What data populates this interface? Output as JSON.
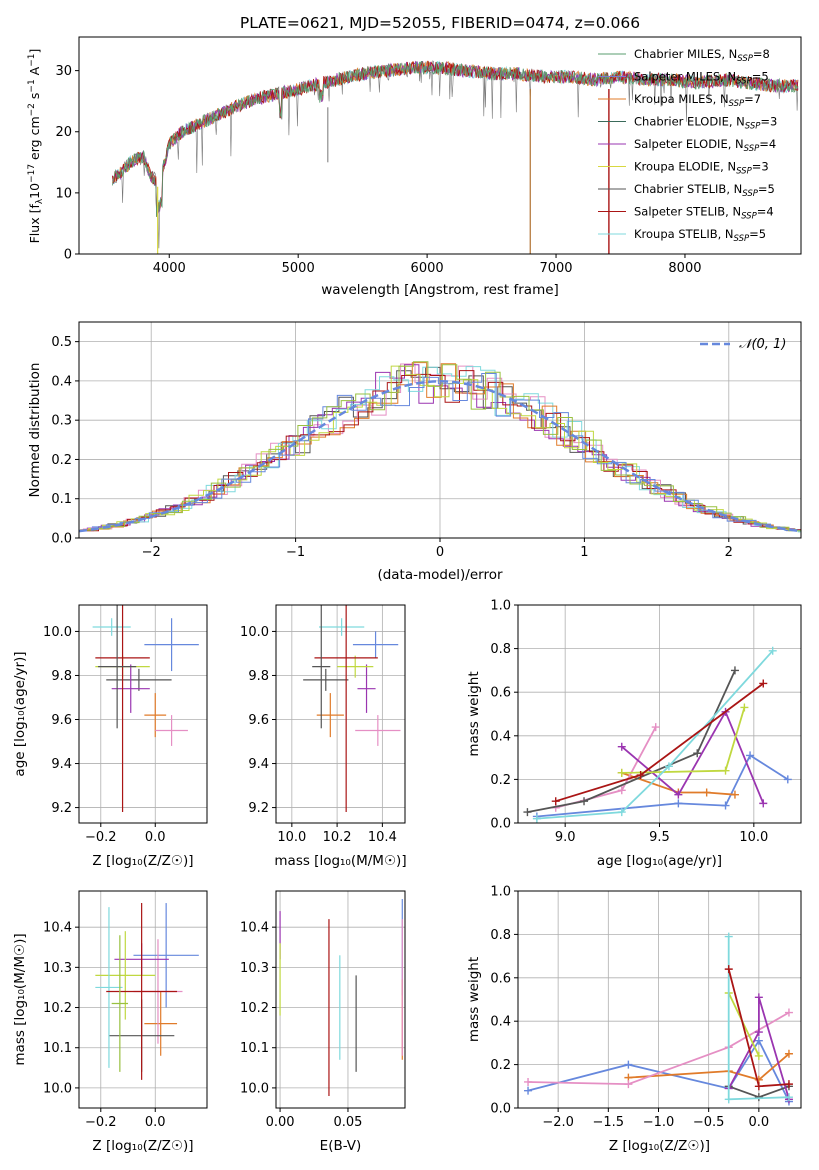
{
  "colors": [
    "#6688dd",
    "#e07b2a",
    "#e58fc4",
    "#555555",
    "#9a35b0",
    "#c0d840",
    "#7fd9dd",
    "#aa1515",
    "#99c040"
  ],
  "spectrum": {
    "title": "PLATE=0621, MJD=52055, FIBERID=0474, z=0.066",
    "xlabel": "wavelength [Angstrom, rest frame]",
    "ylabel_parts": [
      "Flux [f",
      "λ",
      "10",
      "−17",
      " erg cm",
      "−2",
      " s",
      "−1",
      " A",
      "−1",
      "]"
    ],
    "x_ticks": [
      "4000",
      "5000",
      "6000",
      "7000",
      "8000"
    ],
    "y_ticks": [
      "0",
      "10",
      "20",
      "30"
    ],
    "legend": [
      {
        "label": "Chabrier MILES, N",
        "sub": "SSP",
        "tail": "=8",
        "color": "#5a9e6f"
      },
      {
        "label": "Salpeter MILES, N",
        "sub": "SSP",
        "tail": "=5",
        "color": "#7a7ad0"
      },
      {
        "label": "Kroupa MILES, N",
        "sub": "SSP",
        "tail": "=7",
        "color": "#e07b2a"
      },
      {
        "label": "Chabrier ELODIE, N",
        "sub": "SSP",
        "tail": "=3",
        "color": "#3a6a5a"
      },
      {
        "label": "Salpeter ELODIE, N",
        "sub": "SSP",
        "tail": "=4",
        "color": "#9a35b0"
      },
      {
        "label": "Kroupa ELODIE, N",
        "sub": "SSP",
        "tail": "=3",
        "color": "#d8d840"
      },
      {
        "label": "Chabrier STELIB, N",
        "sub": "SSP",
        "tail": "=5",
        "color": "#555555"
      },
      {
        "label": "Salpeter STELIB, N",
        "sub": "SSP",
        "tail": "=4",
        "color": "#aa1515"
      },
      {
        "label": "Kroupa STELIB, N",
        "sub": "SSP",
        "tail": "=5",
        "color": "#7fd9dd"
      }
    ]
  },
  "histogram": {
    "xlabel": "(data-model)/error",
    "ylabel": "Normed distribution",
    "x_ticks": [
      "−2",
      "−1",
      "0",
      "1",
      "2"
    ],
    "y_ticks": [
      "0.0",
      "0.1",
      "0.2",
      "0.3",
      "0.4",
      "0.5"
    ],
    "legend": "𝒩(0, 1)"
  },
  "panels": {
    "age_vs_z": {
      "xlabel": "Z [log₁₀(Z/Z☉)]",
      "ylabel": "age  [log₁₀(age/yr)]",
      "x_ticks": [
        "−0.2",
        "0.0"
      ],
      "y_ticks": [
        "9.2",
        "9.4",
        "9.6",
        "9.8",
        "10.0"
      ]
    },
    "age_vs_mass": {
      "xlabel": "mass [log₁₀(M/M☉)]",
      "x_ticks": [
        "10.0",
        "10.2",
        "10.4"
      ],
      "y_ticks": [
        "9.2",
        "9.4",
        "9.6",
        "9.8",
        "10.0"
      ]
    },
    "weight_vs_age": {
      "xlabel": "age  [log₁₀(age/yr)]",
      "ylabel": "mass weight",
      "x_ticks": [
        "9.0",
        "9.5",
        "10.0"
      ],
      "y_ticks": [
        "0.0",
        "0.2",
        "0.4",
        "0.6",
        "0.8",
        "1.0"
      ]
    },
    "mass_vs_z": {
      "xlabel": "Z [log₁₀(Z/Z☉)]",
      "ylabel": "mass [log₁₀(M/M☉)]",
      "x_ticks": [
        "−0.2",
        "0.0"
      ],
      "y_ticks": [
        "10.0",
        "10.1",
        "10.2",
        "10.3",
        "10.4"
      ]
    },
    "mass_vs_ebv": {
      "xlabel": "E(B-V)",
      "x_ticks": [
        "0.00",
        "0.05"
      ],
      "y_ticks": [
        "10.0",
        "10.1",
        "10.2",
        "10.3",
        "10.4"
      ]
    },
    "weight_vs_z": {
      "xlabel": "Z [log₁₀(Z/Z☉)]",
      "ylabel": "mass weight",
      "x_ticks": [
        "−2.0",
        "−1.5",
        "−1.0",
        "−0.5",
        "0.0"
      ],
      "y_ticks": [
        "0.0",
        "0.2",
        "0.4",
        "0.6",
        "0.8",
        "1.0"
      ]
    }
  },
  "chart_data": [
    {
      "type": "line",
      "title": "PLATE=0621, MJD=52055, FIBERID=0474, z=0.066",
      "xlabel": "wavelength [Angstrom, rest frame]",
      "ylabel": "Flux [fλ 10^-17 erg cm^-2 s^-1 A^-1]",
      "xlim": [
        3300,
        8900
      ],
      "ylim": [
        0,
        35.5
      ],
      "x": [
        3560,
        3600,
        3650,
        3700,
        3750,
        3800,
        3850,
        3900,
        3950,
        4000,
        4100,
        4200,
        4300,
        4400,
        4500,
        4700,
        4900,
        5100,
        5300,
        5500,
        5700,
        5900,
        6100,
        6300,
        6500,
        6700,
        6900,
        7100,
        7300,
        7500,
        7700,
        7900,
        8100,
        8300,
        8500,
        8700,
        8880
      ],
      "y": [
        12,
        13,
        14,
        15,
        15.5,
        16,
        13,
        12,
        14,
        18,
        20,
        21,
        22,
        23,
        24,
        25.5,
        26.5,
        27.5,
        28.5,
        29.5,
        30,
        30.5,
        30.5,
        30,
        29.5,
        29.5,
        29,
        29,
        28.5,
        29,
        28.5,
        28.5,
        28,
        28.5,
        28,
        27.5,
        27.5
      ]
    },
    {
      "type": "line",
      "series": [
        {
          "name": "𝒩(0, 1)"
        }
      ],
      "xlabel": "(data-model)/error",
      "ylabel": "Normed distribution",
      "xlim": [
        -2.5,
        2.5
      ],
      "ylim": [
        0,
        0.55
      ]
    },
    {
      "type": "scatter",
      "xlabel": "Z [log10(Z/Zsun)]",
      "ylabel": "age [log10(age/yr)]",
      "xlim": [
        -0.28,
        0.19
      ],
      "ylim": [
        9.13,
        10.12
      ],
      "points": [
        {
          "x": 0.06,
          "y": 9.94,
          "xerr": 0.1,
          "yerr": 0.12,
          "c": 0
        },
        {
          "x": 0.0,
          "y": 9.62,
          "xerr": 0.04,
          "yerr": 0.1,
          "c": 1
        },
        {
          "x": 0.06,
          "y": 9.55,
          "xerr": 0.06,
          "yerr": 0.07,
          "c": 2
        },
        {
          "x": -0.06,
          "y": 9.78,
          "xerr": 0.12,
          "yerr": 0.05,
          "c": 3
        },
        {
          "x": -0.09,
          "y": 9.74,
          "xerr": 0.07,
          "yerr": 0.11,
          "c": 4
        },
        {
          "x": -0.12,
          "y": 9.84,
          "xerr": 0.1,
          "yerr": 0.05,
          "c": 5
        },
        {
          "x": -0.16,
          "y": 10.02,
          "xerr": 0.07,
          "yerr": 0.04,
          "c": 6
        },
        {
          "x": -0.12,
          "y": 9.88,
          "xerr": 0.1,
          "yerr": 0.7,
          "c": 7
        },
        {
          "x": -0.14,
          "y": 9.84,
          "xerr": 0.07,
          "yerr": 0.28,
          "c": 3
        }
      ]
    },
    {
      "type": "scatter",
      "xlabel": "mass [log10(M/Msun)]",
      "xlim": [
        9.93,
        10.5
      ],
      "ylim": [
        9.13,
        10.12
      ],
      "points": [
        {
          "x": 10.37,
          "y": 9.94,
          "xerr": 0.1,
          "yerr": 0.06,
          "c": 0
        },
        {
          "x": 10.17,
          "y": 9.62,
          "xerr": 0.06,
          "yerr": 0.1,
          "c": 1
        },
        {
          "x": 10.38,
          "y": 9.55,
          "xerr": 0.1,
          "yerr": 0.07,
          "c": 2
        },
        {
          "x": 10.15,
          "y": 9.78,
          "xerr": 0.1,
          "yerr": 0.05,
          "c": 3
        },
        {
          "x": 10.33,
          "y": 9.74,
          "xerr": 0.04,
          "yerr": 0.11,
          "c": 4
        },
        {
          "x": 10.28,
          "y": 9.84,
          "xerr": 0.08,
          "yerr": 0.05,
          "c": 5
        },
        {
          "x": 10.22,
          "y": 10.02,
          "xerr": 0.1,
          "yerr": 0.04,
          "c": 6
        },
        {
          "x": 10.24,
          "y": 9.88,
          "xerr": 0.14,
          "yerr": 0.7,
          "c": 7
        },
        {
          "x": 10.13,
          "y": 9.84,
          "xerr": 0.04,
          "yerr": 0.28,
          "c": 3
        }
      ]
    },
    {
      "type": "line",
      "xlabel": "age [log10(age/yr)]",
      "ylabel": "mass weight",
      "xlim": [
        8.75,
        10.25
      ],
      "ylim": [
        0,
        1
      ],
      "series": [
        {
          "c": 0,
          "x": [
            8.85,
            9.6,
            9.85,
            9.98,
            10.18
          ],
          "y": [
            0.03,
            0.09,
            0.08,
            0.31,
            0.2
          ]
        },
        {
          "c": 1,
          "x": [
            9.3,
            9.6,
            9.75,
            9.9
          ],
          "y": [
            0.23,
            0.14,
            0.14,
            0.13
          ]
        },
        {
          "c": 2,
          "x": [
            8.95,
            9.3,
            9.48
          ],
          "y": [
            0.07,
            0.15,
            0.44
          ]
        },
        {
          "c": 3,
          "x": [
            8.8,
            9.1,
            9.7,
            9.9
          ],
          "y": [
            0.05,
            0.1,
            0.32,
            0.7
          ]
        },
        {
          "c": 4,
          "x": [
            9.3,
            9.6,
            9.85,
            10.05
          ],
          "y": [
            0.35,
            0.13,
            0.51,
            0.09
          ]
        },
        {
          "c": 5,
          "x": [
            9.3,
            9.85,
            9.95
          ],
          "y": [
            0.23,
            0.24,
            0.53
          ]
        },
        {
          "c": 6,
          "x": [
            8.85,
            9.3,
            9.55,
            10.1
          ],
          "y": [
            0.02,
            0.05,
            0.26,
            0.79
          ]
        },
        {
          "c": 7,
          "x": [
            8.95,
            9.4,
            10.05
          ],
          "y": [
            0.1,
            0.22,
            0.64
          ]
        }
      ]
    },
    {
      "type": "scatter",
      "xlabel": "Z [log10(Z/Zsun)]",
      "ylabel": "mass [log10(M/Msun)]",
      "xlim": [
        -0.28,
        0.19
      ],
      "ylim": [
        9.95,
        10.49
      ],
      "points": [
        {
          "x": 0.04,
          "y": 10.33,
          "xerr": 0.12,
          "yerr": 0.13,
          "c": 0
        },
        {
          "x": 0.02,
          "y": 10.16,
          "xerr": 0.06,
          "yerr": 0.08,
          "c": 1
        },
        {
          "x": 0.01,
          "y": 10.24,
          "xerr": 0.09,
          "yerr": 0.13,
          "c": 2
        },
        {
          "x": -0.05,
          "y": 10.13,
          "xerr": 0.12,
          "yerr": 0.09,
          "c": 3
        },
        {
          "x": -0.05,
          "y": 10.32,
          "xerr": 0.1,
          "yerr": 0.04,
          "c": 4
        },
        {
          "x": -0.11,
          "y": 10.28,
          "xerr": 0.11,
          "yerr": 0.11,
          "c": 5
        },
        {
          "x": -0.17,
          "y": 10.25,
          "xerr": 0.05,
          "yerr": 0.2,
          "c": 6
        },
        {
          "x": -0.05,
          "y": 10.24,
          "xerr": 0.13,
          "yerr": 0.22,
          "c": 7
        },
        {
          "x": -0.13,
          "y": 10.21,
          "xerr": 0.03,
          "yerr": 0.17,
          "c": 8
        }
      ]
    },
    {
      "type": "scatter",
      "xlabel": "E(B-V)",
      "xlim": [
        -0.003,
        0.092
      ],
      "ylim": [
        9.95,
        10.49
      ],
      "points": [
        {
          "x": 0.0,
          "y": 10.38,
          "yerr": 0.06,
          "c": 4
        },
        {
          "x": 0.0,
          "y": 10.27,
          "yerr": 0.09,
          "c": 5
        },
        {
          "x": 0.036,
          "y": 10.2,
          "yerr": 0.22,
          "c": 7
        },
        {
          "x": 0.044,
          "y": 10.2,
          "yerr": 0.13,
          "c": 6
        },
        {
          "x": 0.056,
          "y": 10.16,
          "yerr": 0.12,
          "c": 3
        },
        {
          "x": 0.09,
          "y": 10.35,
          "yerr": 0.12,
          "c": 0
        },
        {
          "x": 0.09,
          "y": 10.17,
          "yerr": 0.1,
          "c": 1
        },
        {
          "x": 0.09,
          "y": 10.25,
          "yerr": 0.17,
          "c": 2
        }
      ]
    },
    {
      "type": "line",
      "xlabel": "Z [log10(Z/Zsun)]",
      "ylabel": "mass weight",
      "xlim": [
        -2.4,
        0.42
      ],
      "ylim": [
        0,
        1
      ],
      "series": [
        {
          "c": 0,
          "x": [
            -2.3,
            -1.3,
            -0.3,
            0.0,
            0.3
          ],
          "y": [
            0.08,
            0.2,
            0.09,
            0.31,
            0.03
          ]
        },
        {
          "c": 1,
          "x": [
            -1.3,
            -0.3,
            0.0,
            0.3
          ],
          "y": [
            0.14,
            0.17,
            0.13,
            0.25
          ]
        },
        {
          "c": 2,
          "x": [
            -2.3,
            -1.3,
            -0.3,
            0.3
          ],
          "y": [
            0.12,
            0.11,
            0.28,
            0.44
          ]
        },
        {
          "c": 3,
          "x": [
            -0.3,
            0.0,
            0.3
          ],
          "y": [
            0.1,
            0.05,
            0.1
          ]
        },
        {
          "c": 4,
          "x": [
            -0.3,
            0.0,
            0.0,
            0.3
          ],
          "y": [
            0.09,
            0.35,
            0.51,
            0.04
          ]
        },
        {
          "c": 5,
          "x": [
            -0.3,
            0.0
          ],
          "y": [
            0.53,
            0.24
          ]
        },
        {
          "c": 6,
          "x": [
            -0.3,
            -0.3,
            0.3
          ],
          "y": [
            0.79,
            0.04,
            0.05
          ]
        },
        {
          "c": 7,
          "x": [
            -0.3,
            0.0,
            0.3
          ],
          "y": [
            0.64,
            0.1,
            0.11
          ]
        }
      ]
    }
  ]
}
